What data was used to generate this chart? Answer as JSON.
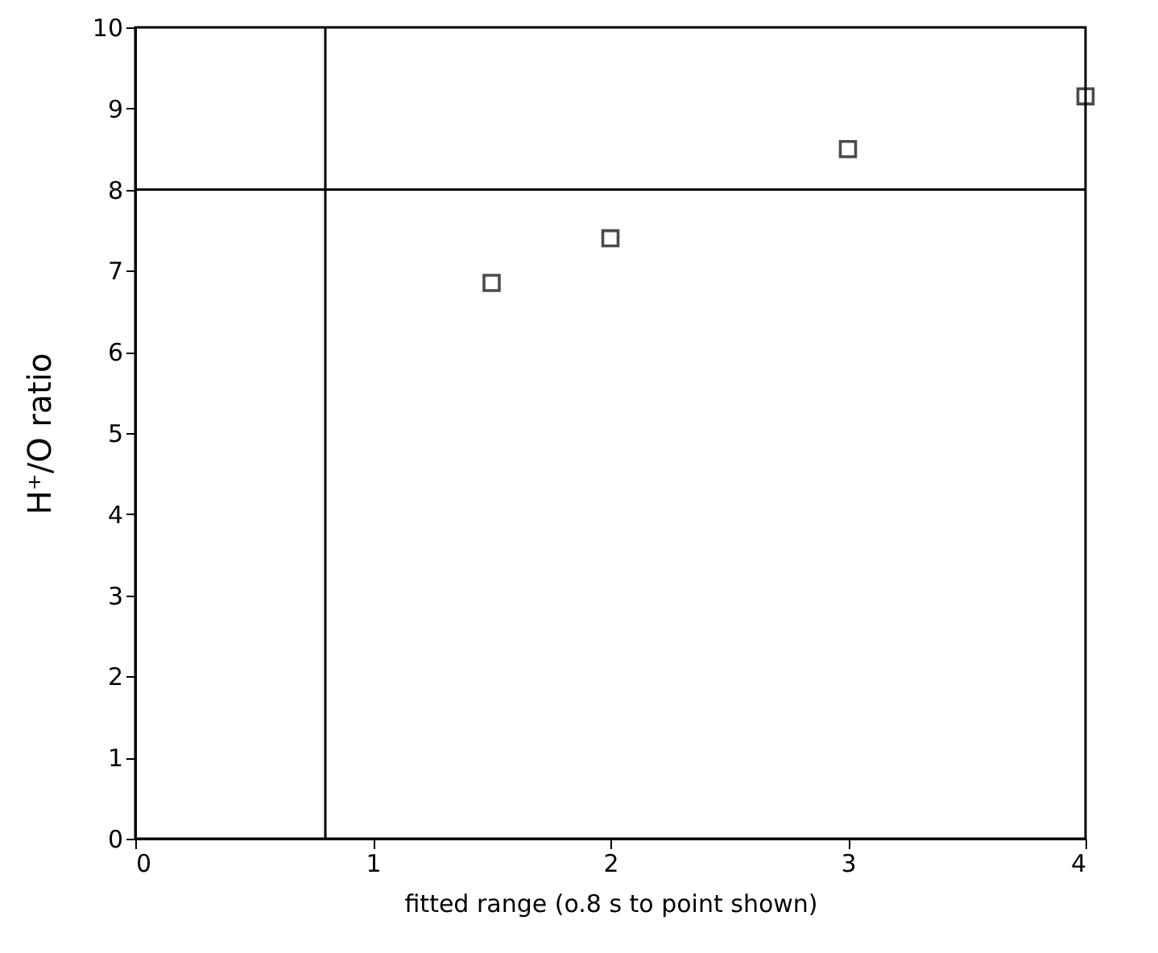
{
  "chart_data": {
    "type": "scatter",
    "xlabel": "fitted range (o.8 s to point shown)",
    "ylabel": "H⁺/O ratio",
    "x": [
      1.5,
      2,
      3,
      4
    ],
    "series": [
      {
        "color": "#000000",
        "values": [
          6.85,
          7.4,
          8.5,
          9.15
        ]
      }
    ],
    "xlim": [
      0,
      4
    ],
    "xticks": [
      0,
      1,
      2,
      3,
      4
    ],
    "ylim": [
      0,
      10
    ],
    "yticks": [
      0,
      1,
      2,
      3,
      4,
      5,
      6,
      7,
      8,
      9,
      10
    ],
    "ref_lines": [
      {
        "axis": "x",
        "value": 0.8,
        "color": "#000000"
      },
      {
        "axis": "y",
        "value": 8,
        "color": "#000000"
      }
    ],
    "marker": "square",
    "grid": false
  }
}
